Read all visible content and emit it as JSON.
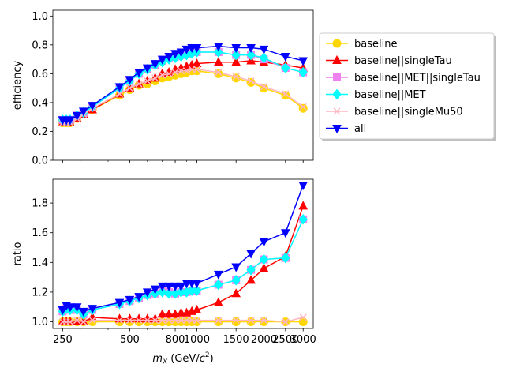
{
  "chart_data": [
    {
      "type": "line",
      "panel": "top",
      "xlabel": "",
      "ylabel": "efficiency",
      "ylim": [
        0.0,
        1.04
      ],
      "yticks": [
        "0.0",
        "0.2",
        "0.4",
        "0.6",
        "0.8",
        "1.0"
      ],
      "xscale": "log",
      "grid": false,
      "x": [
        250,
        260,
        270,
        290,
        310,
        340,
        450,
        500,
        550,
        600,
        650,
        700,
        750,
        800,
        850,
        900,
        950,
        1000,
        1250,
        1500,
        1750,
        2000,
        2500,
        3000
      ],
      "series": [
        {
          "name": "baseline",
          "color": "#ffd700",
          "marker": "circle",
          "values": [
            0.26,
            0.26,
            0.26,
            0.29,
            0.32,
            0.35,
            0.45,
            0.49,
            0.52,
            0.53,
            0.55,
            0.57,
            0.58,
            0.59,
            0.6,
            0.61,
            0.62,
            0.62,
            0.6,
            0.57,
            0.54,
            0.5,
            0.45,
            0.36
          ]
        },
        {
          "name": "baseline||singleTau",
          "color": "#ff0000",
          "marker": "triangle-up",
          "values": [
            0.26,
            0.26,
            0.26,
            0.29,
            0.32,
            0.35,
            0.46,
            0.5,
            0.53,
            0.55,
            0.57,
            0.6,
            0.61,
            0.63,
            0.64,
            0.65,
            0.66,
            0.67,
            0.68,
            0.68,
            0.69,
            0.68,
            0.66,
            0.64
          ]
        },
        {
          "name": "baseline||MET||singleTau",
          "color": "#ee82ee",
          "marker": "square",
          "values": [
            0.28,
            0.28,
            0.28,
            0.31,
            0.33,
            0.37,
            0.5,
            0.55,
            0.6,
            0.63,
            0.66,
            0.69,
            0.71,
            0.72,
            0.73,
            0.74,
            0.75,
            0.75,
            0.75,
            0.73,
            0.73,
            0.7,
            0.64,
            0.61
          ]
        },
        {
          "name": "baseline||MET",
          "color": "#00ffff",
          "marker": "diamond",
          "values": [
            0.28,
            0.28,
            0.28,
            0.31,
            0.33,
            0.37,
            0.5,
            0.55,
            0.6,
            0.63,
            0.66,
            0.68,
            0.7,
            0.71,
            0.72,
            0.73,
            0.74,
            0.75,
            0.75,
            0.73,
            0.73,
            0.71,
            0.64,
            0.61
          ]
        },
        {
          "name": "baseline||singleMu50",
          "color": "#ffb6c1",
          "marker": "x",
          "values": [
            0.26,
            0.26,
            0.26,
            0.29,
            0.32,
            0.36,
            0.46,
            0.5,
            0.53,
            0.55,
            0.57,
            0.59,
            0.6,
            0.61,
            0.62,
            0.62,
            0.63,
            0.63,
            0.61,
            0.58,
            0.55,
            0.51,
            0.46,
            0.37
          ]
        },
        {
          "name": "all",
          "color": "#0000ff",
          "marker": "triangle-down",
          "values": [
            0.28,
            0.28,
            0.28,
            0.31,
            0.34,
            0.38,
            0.51,
            0.56,
            0.61,
            0.64,
            0.67,
            0.7,
            0.72,
            0.74,
            0.75,
            0.77,
            0.78,
            0.78,
            0.79,
            0.78,
            0.78,
            0.77,
            0.72,
            0.69
          ]
        }
      ],
      "legend": {
        "placement": "outside-right-top",
        "entries": [
          "baseline",
          "baseline||singleTau",
          "baseline||MET||singleTau",
          "baseline||MET",
          "baseline||singleMu50",
          "all"
        ]
      }
    },
    {
      "type": "line",
      "panel": "bottom",
      "xlabel": "m_X (GeV/c^2)",
      "xlabel_parts": {
        "m": "m",
        "sub": "X",
        "before_sup": " (GeV/",
        "c": "c",
        "sup": "2",
        "after": ")"
      },
      "ylabel": "ratio",
      "ylim": [
        0.955,
        1.96
      ],
      "yticks": [
        "1.0",
        "1.2",
        "1.4",
        "1.6",
        "1.8"
      ],
      "xscale": "log",
      "xticks": [
        "250",
        "500",
        "800",
        "1000",
        "1500",
        "2000",
        "2500",
        "3000"
      ],
      "grid": false,
      "x": [
        250,
        260,
        270,
        290,
        310,
        340,
        450,
        500,
        550,
        600,
        650,
        700,
        750,
        800,
        850,
        900,
        950,
        1000,
        1250,
        1500,
        1750,
        2000,
        2500,
        3000
      ],
      "series": [
        {
          "name": "baseline",
          "color": "#ffd700",
          "marker": "circle",
          "values": [
            1.0,
            1.0,
            1.0,
            1.0,
            1.0,
            1.0,
            1.0,
            1.0,
            1.0,
            1.0,
            1.0,
            1.0,
            1.0,
            1.0,
            1.0,
            1.0,
            1.0,
            1.0,
            1.0,
            1.0,
            1.0,
            1.0,
            1.0,
            1.0
          ]
        },
        {
          "name": "baseline||singleTau",
          "color": "#ff0000",
          "marker": "triangle-up",
          "values": [
            1.0,
            1.0,
            1.0,
            1.0,
            1.0,
            1.03,
            1.02,
            1.02,
            1.02,
            1.02,
            1.02,
            1.05,
            1.05,
            1.05,
            1.06,
            1.06,
            1.07,
            1.08,
            1.13,
            1.19,
            1.28,
            1.36,
            1.44,
            1.78
          ]
        },
        {
          "name": "baseline||MET||singleTau",
          "color": "#ee82ee",
          "marker": "square",
          "values": [
            1.07,
            1.09,
            1.08,
            1.08,
            1.05,
            1.08,
            1.12,
            1.14,
            1.16,
            1.18,
            1.19,
            1.21,
            1.2,
            1.19,
            1.2,
            1.2,
            1.21,
            1.21,
            1.25,
            1.28,
            1.35,
            1.42,
            1.43,
            1.69
          ]
        },
        {
          "name": "baseline||MET",
          "color": "#00ffff",
          "marker": "diamond",
          "values": [
            1.07,
            1.09,
            1.08,
            1.08,
            1.05,
            1.08,
            1.12,
            1.14,
            1.16,
            1.18,
            1.19,
            1.2,
            1.19,
            1.19,
            1.2,
            1.2,
            1.21,
            1.21,
            1.25,
            1.28,
            1.35,
            1.42,
            1.43,
            1.69
          ]
        },
        {
          "name": "baseline||singleMu50",
          "color": "#ffb6c1",
          "marker": "x",
          "values": [
            1.0,
            1.0,
            1.0,
            1.01,
            1.0,
            1.01,
            1.01,
            1.01,
            1.01,
            1.01,
            1.01,
            1.01,
            1.01,
            1.01,
            1.01,
            1.01,
            1.01,
            1.01,
            1.01,
            1.01,
            1.01,
            1.01,
            1.0,
            1.03
          ]
        },
        {
          "name": "all",
          "color": "#0000ff",
          "marker": "triangle-down",
          "values": [
            1.08,
            1.11,
            1.1,
            1.1,
            1.07,
            1.09,
            1.13,
            1.15,
            1.17,
            1.2,
            1.22,
            1.24,
            1.24,
            1.24,
            1.24,
            1.26,
            1.26,
            1.26,
            1.32,
            1.37,
            1.46,
            1.54,
            1.6,
            1.92
          ]
        }
      ]
    }
  ]
}
